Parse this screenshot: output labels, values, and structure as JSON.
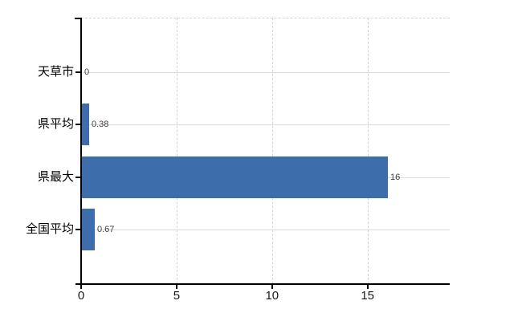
{
  "chart_data": {
    "type": "bar",
    "orientation": "horizontal",
    "title": "",
    "categories": [
      "天草市",
      "県平均",
      "県最大",
      "全国平均"
    ],
    "values": [
      0,
      0.38,
      16,
      0.67
    ],
    "value_labels": [
      "0",
      "0.38",
      "16",
      "0.67"
    ],
    "x_ticks": [
      0,
      5,
      10,
      15
    ],
    "x_tick_labels": [
      "0",
      "5",
      "10",
      "15"
    ],
    "xlim": [
      0,
      19.3
    ],
    "grid": true,
    "legend": false,
    "bar_color": "#3d6dab",
    "h_gridline_color": "#d6ded6",
    "v_gridline_color": "#d4d4d4",
    "top_border_color": "#d0d8d0",
    "axis_color": "#000000",
    "value_label_color": "#404040",
    "background_color": "#ffffff"
  }
}
